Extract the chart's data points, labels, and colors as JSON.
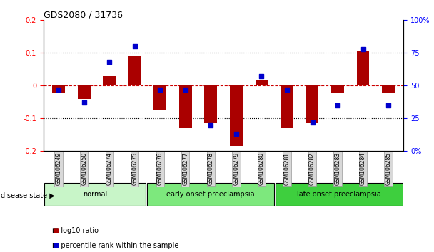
{
  "title": "GDS2080 / 31736",
  "samples": [
    "GSM106249",
    "GSM106250",
    "GSM106274",
    "GSM106275",
    "GSM106276",
    "GSM106277",
    "GSM106278",
    "GSM106279",
    "GSM106280",
    "GSM106281",
    "GSM106282",
    "GSM106283",
    "GSM106284",
    "GSM106285"
  ],
  "log10_ratio": [
    -0.02,
    -0.04,
    0.03,
    0.09,
    -0.075,
    -0.13,
    -0.115,
    -0.185,
    0.015,
    -0.13,
    -0.115,
    -0.02,
    0.105,
    -0.02
  ],
  "percentile_rank": [
    47,
    37,
    68,
    80,
    47,
    47,
    20,
    13,
    57,
    47,
    22,
    35,
    78,
    35
  ],
  "groups": [
    {
      "label": "normal",
      "start": 0,
      "end": 4,
      "color": "#c8f5c8"
    },
    {
      "label": "early onset preeclampsia",
      "start": 4,
      "end": 9,
      "color": "#7de87d"
    },
    {
      "label": "late onset preeclampsia",
      "start": 9,
      "end": 14,
      "color": "#3ecf3e"
    }
  ],
  "ylim_left": [
    -0.2,
    0.2
  ],
  "ylim_right": [
    0,
    100
  ],
  "yticks_left": [
    -0.2,
    -0.1,
    0.0,
    0.1,
    0.2
  ],
  "yticks_right": [
    0,
    25,
    50,
    75,
    100
  ],
  "bar_color": "#aa0000",
  "scatter_color": "#0000cc",
  "zero_line_color": "#cc0000",
  "dotted_line_color": "#000000",
  "bar_width": 0.5,
  "legend_items": [
    "log10 ratio",
    "percentile rank within the sample"
  ],
  "disease_state_label": "disease state"
}
